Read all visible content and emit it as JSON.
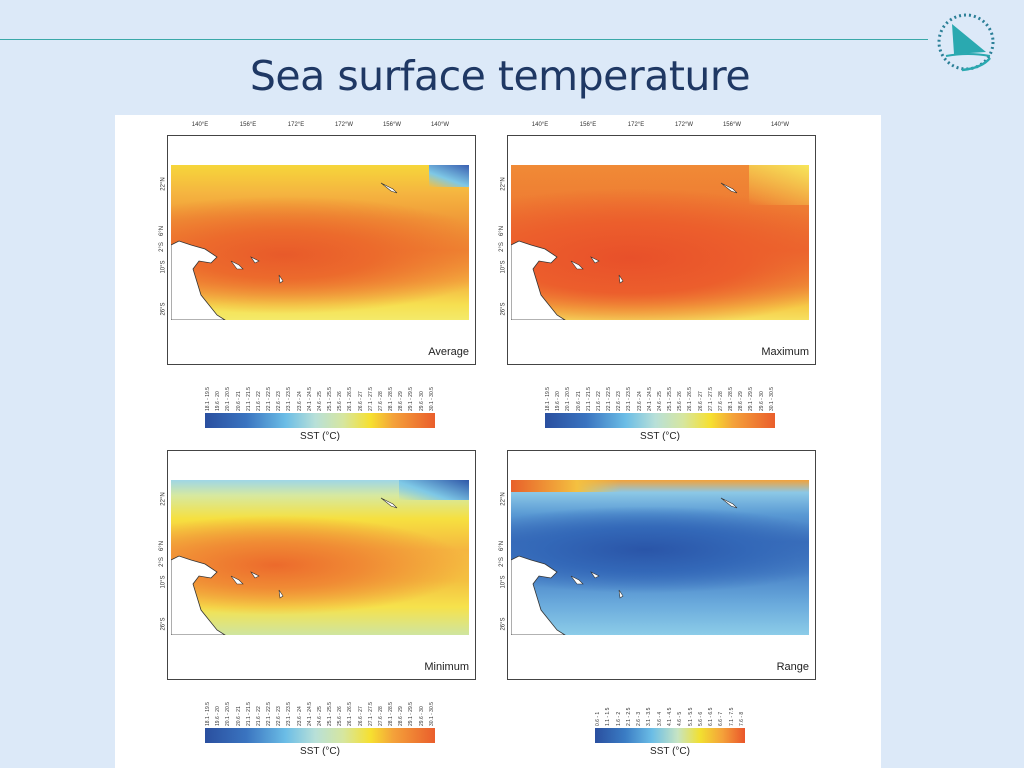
{
  "slide": {
    "title": "Sea surface temperature"
  },
  "logo": {
    "name": "sailboat-circle-logo",
    "color": "#2aa9b0"
  },
  "axes": {
    "lon": [
      "140°E",
      "156°E",
      "172°E",
      "172°W",
      "156°W",
      "140°W"
    ],
    "lat": [
      "22°N",
      "6°N",
      "2°S",
      "10°S",
      "26°S"
    ]
  },
  "panels": [
    {
      "label": "Average",
      "colorbar_title": "SST (°C)"
    },
    {
      "label": "Maximum",
      "colorbar_title": "SST (°C)"
    },
    {
      "label": "Minimum",
      "colorbar_title": "SST (°C)"
    },
    {
      "label": "Range",
      "colorbar_title": "SST (°C)"
    }
  ],
  "legend_sst": [
    "18.1 - 19.5",
    "19.6 - 20",
    "20.1 - 20.5",
    "20.6 - 21",
    "21.1 - 21.5",
    "21.6 - 22",
    "22.1 - 22.5",
    "22.6 - 23",
    "23.1 - 23.5",
    "23.6 - 24",
    "24.1 - 24.5",
    "24.6 - 25",
    "25.1 - 25.5",
    "25.6 - 26",
    "26.1 - 26.5",
    "26.6 - 27",
    "27.1 - 27.5",
    "27.6 - 28",
    "28.1 - 28.5",
    "28.6 - 29",
    "29.1 - 29.5",
    "29.6 - 30",
    "30.1 - 30.5"
  ],
  "legend_range": [
    "0.6 - 1",
    "1.1 - 1.5",
    "1.6 - 2",
    "2.1 - 2.5",
    "2.6 - 3",
    "3.1 - 3.5",
    "3.6 - 4",
    "4.1 - 4.5",
    "4.6 - 5",
    "5.1 - 5.5",
    "5.6 - 6",
    "6.1 - 6.5",
    "6.6 - 7",
    "7.1 - 7.5",
    "7.6 - 8"
  ]
}
